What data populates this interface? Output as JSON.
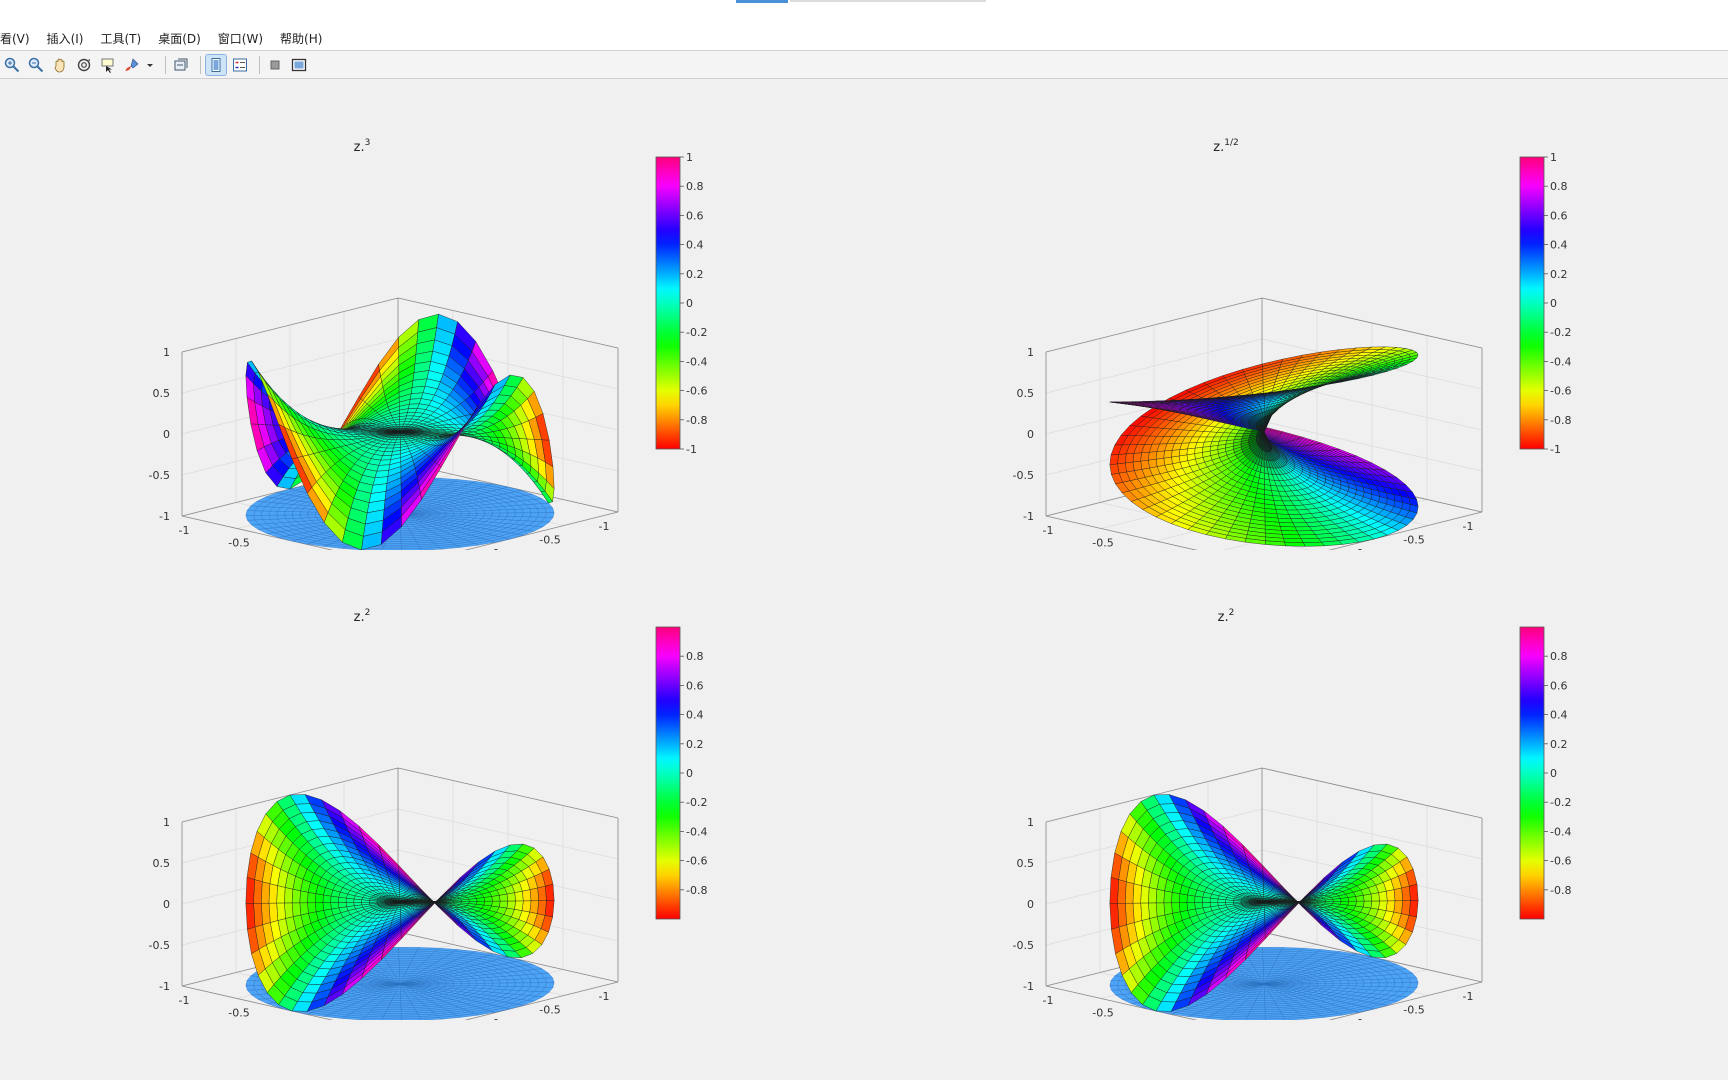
{
  "window": {
    "menu": [
      "看(V)",
      "插入(I)",
      "工具(T)",
      "桌面(D)",
      "窗口(W)",
      "帮助(H)"
    ]
  },
  "toolbar": {
    "icons": [
      "zoom-in-icon",
      "zoom-out-icon",
      "pan-hand-icon",
      "rotate-3d-icon",
      "data-cursor-icon",
      "brush-icon",
      "brush-dropdown-icon",
      "link-plot-icon",
      "colorbar-icon",
      "legend-icon",
      "hide-plot-tools-icon",
      "show-plot-tools-icon"
    ]
  },
  "colormap": "hsv",
  "chart_data": [
    {
      "type": "surface",
      "title_base": "z.",
      "title_exp": "3",
      "function": "real(z^3)",
      "axes": {
        "x_ticks": [
          "-1",
          "-0.5",
          "0",
          "0.5",
          "1"
        ],
        "y_ticks": [
          "-1",
          "-0.5",
          "0",
          "0.5",
          "1"
        ],
        "z_ticks": [
          "-1",
          "-0.5",
          "0",
          "0.5",
          "1"
        ],
        "xlim": [
          -1,
          1
        ],
        "ylim": [
          -1,
          1
        ],
        "zlim": [
          -1,
          1
        ]
      },
      "colorbar": {
        "ticks": [
          "1",
          "0.8",
          "0.6",
          "0.4",
          "0.2",
          "0",
          "-0.2",
          "-0.4",
          "-0.6",
          "-0.8",
          "-1"
        ],
        "range": [
          -1,
          1
        ]
      },
      "grid": true,
      "base_disc": true
    },
    {
      "type": "surface",
      "title_base": "z.",
      "title_exp": "1/2",
      "function": "real(z^(1/2))",
      "axes": {
        "x_ticks": [
          "-1",
          "-0.5",
          "0",
          "0.5",
          "1"
        ],
        "y_ticks": [
          "-1",
          "-0.5",
          "0",
          "0.5",
          "1"
        ],
        "z_ticks": [
          "-1",
          "-0.5",
          "0",
          "0.5",
          "1"
        ],
        "xlim": [
          -1,
          1
        ],
        "ylim": [
          -1,
          1
        ],
        "zlim": [
          -1,
          1
        ]
      },
      "colorbar": {
        "ticks": [
          "1",
          "0.8",
          "0.6",
          "0.4",
          "0.2",
          "0",
          "-0.2",
          "-0.4",
          "-0.6",
          "-0.8",
          "-1"
        ],
        "range": [
          -1,
          1
        ]
      },
      "grid": true,
      "base_disc": false
    },
    {
      "type": "surface",
      "title_base": "z.",
      "title_exp": "2",
      "function": "real(z^2)",
      "axes": {
        "x_ticks": [
          "-1",
          "-0.5",
          "0",
          "0.5",
          "1"
        ],
        "y_ticks": [
          "-1",
          "-0.5",
          "0",
          "0.5",
          "1"
        ],
        "z_ticks": [
          "-1",
          "-0.5",
          "0",
          "0.5",
          "1"
        ],
        "xlim": [
          -1,
          1
        ],
        "ylim": [
          -1,
          1
        ],
        "zlim": [
          -1,
          1
        ]
      },
      "colorbar": {
        "ticks": [
          "0.8",
          "0.6",
          "0.4",
          "0.2",
          "0",
          "-0.2",
          "-0.4",
          "-0.6",
          "-0.8"
        ],
        "range": [
          -1,
          1
        ]
      },
      "grid": true,
      "base_disc": true
    },
    {
      "type": "surface",
      "title_base": "z.",
      "title_exp": "2",
      "function": "real(z^2)",
      "axes": {
        "x_ticks": [
          "-1",
          "-0.5",
          "0",
          "0.5",
          "1"
        ],
        "y_ticks": [
          "-1",
          "-0.5",
          "0",
          "0.5",
          "1"
        ],
        "z_ticks": [
          "-1",
          "-0.5",
          "0",
          "0.5",
          "1"
        ],
        "xlim": [
          -1,
          1
        ],
        "ylim": [
          -1,
          1
        ],
        "zlim": [
          -1,
          1
        ]
      },
      "colorbar": {
        "ticks": [
          "0.8",
          "0.6",
          "0.4",
          "0.2",
          "0",
          "-0.2",
          "-0.4",
          "-0.6",
          "-0.8"
        ],
        "range": [
          -1,
          1
        ]
      },
      "grid": true,
      "base_disc": true
    }
  ]
}
